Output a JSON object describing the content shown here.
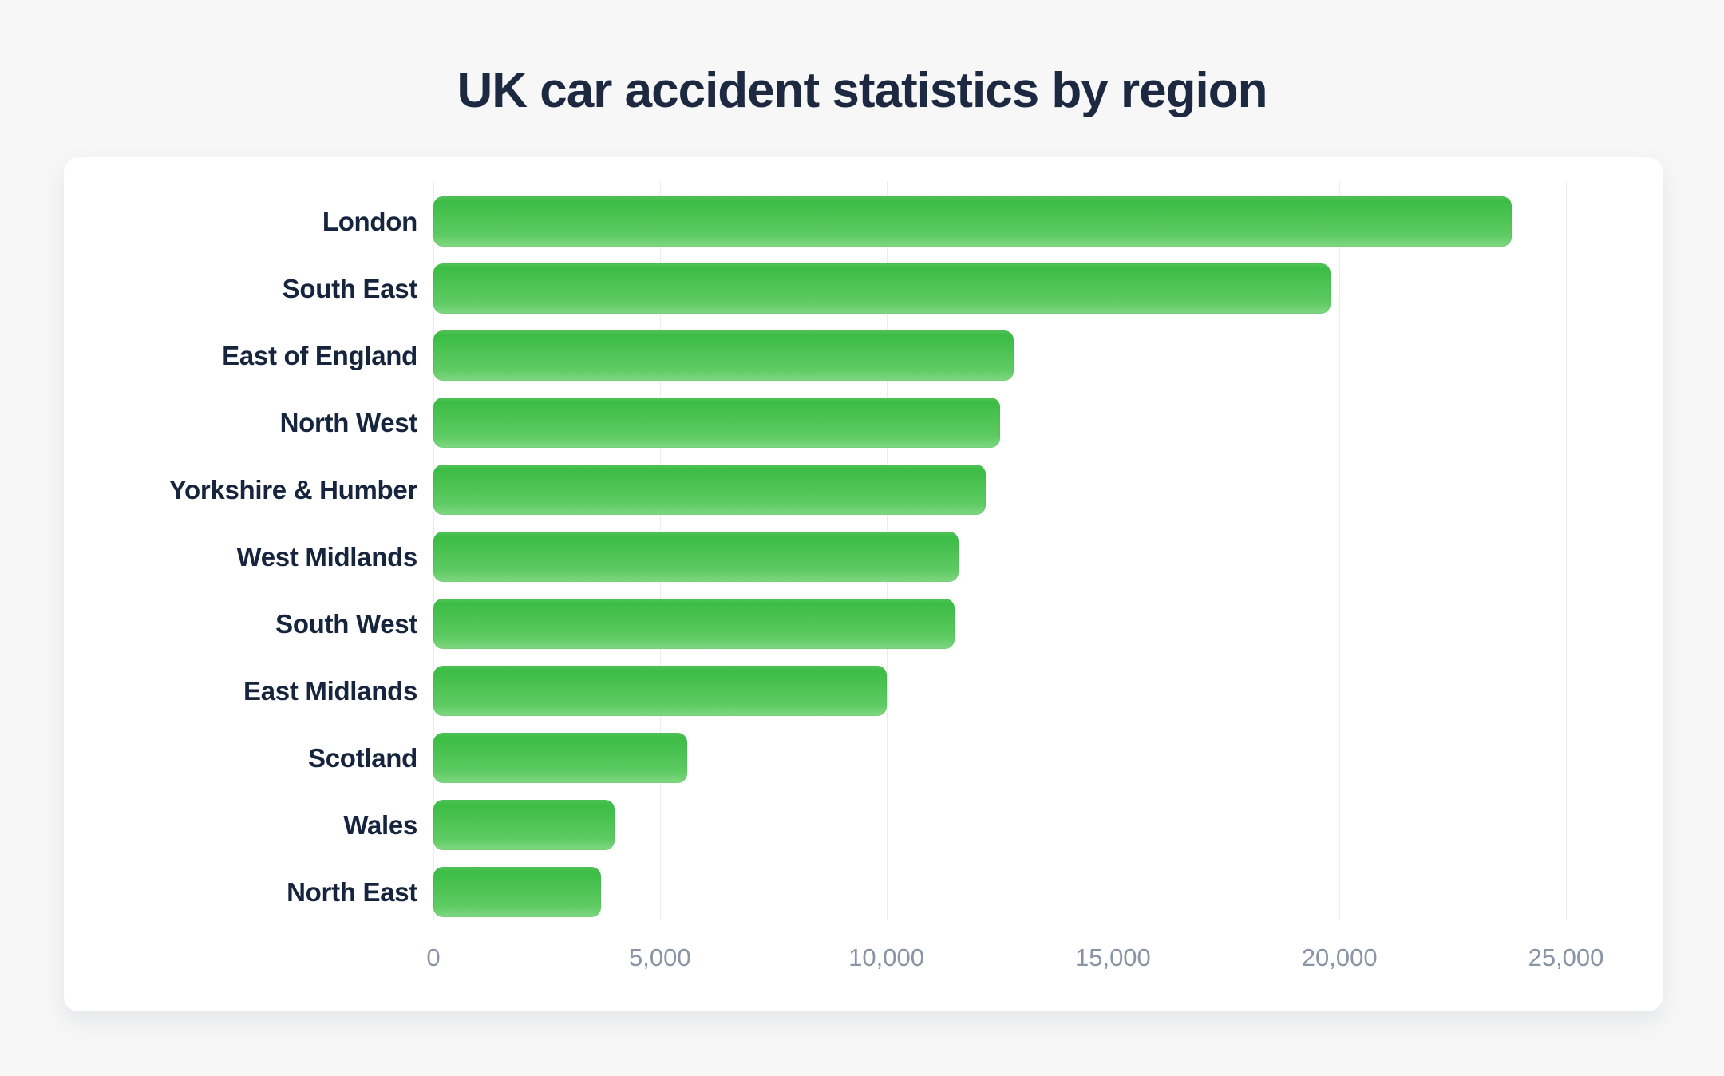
{
  "page": {
    "background_color": "#f7f7f7",
    "card_color": "#ffffff",
    "title_color": "#1c2940",
    "label_color": "#16243d",
    "tick_color": "#8a94a4",
    "gridline_color": "#ececec",
    "bar_color_top": "#3cbc45",
    "bar_color_bottom": "#81d783"
  },
  "chart_data": {
    "type": "bar",
    "orientation": "horizontal",
    "title": "UK car accident statistics by region",
    "categories": [
      "London",
      "South East",
      "East of England",
      "North West",
      "Yorkshire & Humber",
      "West Midlands",
      "South West",
      "East Midlands",
      "Scotland",
      "Wales",
      "North East"
    ],
    "values": [
      23800,
      19800,
      12800,
      12500,
      12200,
      11600,
      11500,
      10000,
      5600,
      4000,
      3700
    ],
    "xlabel": "",
    "ylabel": "",
    "xlim": [
      0,
      25000
    ],
    "x_ticks": [
      0,
      5000,
      10000,
      15000,
      20000,
      25000
    ],
    "x_tick_labels": [
      "0",
      "5,000",
      "10,000",
      "15,000",
      "20,000",
      "25,000"
    ],
    "grid": "vertical-only",
    "legend": "none",
    "bar_gradient": [
      "#3cbc45",
      "#81d783"
    ]
  }
}
